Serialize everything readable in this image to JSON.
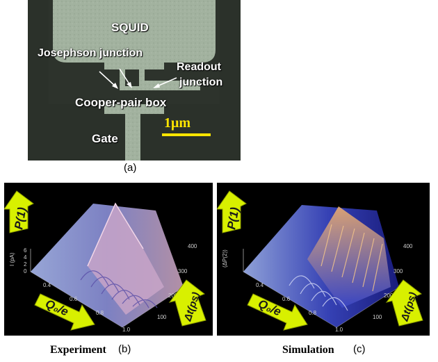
{
  "panel_a": {
    "caption": "(a)",
    "labels": {
      "squid": "SQUID",
      "josephson": "Josephson junction",
      "readout_line1": "Readout",
      "readout_line2": "junction",
      "cooper": "Cooper-pair box",
      "gate": "Gate"
    },
    "scale_bar": "1μm"
  },
  "panel_b": {
    "caption_word": "Experiment",
    "caption_letter": "(b)",
    "z_axis_label": "I (pA)",
    "z_ticks": [
      "6",
      "4",
      "2",
      "0"
    ],
    "x_ticks": [
      "0.4",
      "0.6",
      "0.8",
      "1.0"
    ],
    "y_ticks": [
      "100",
      "200",
      "300",
      "400"
    ],
    "arrow_p": "P(1)",
    "arrow_q": "Q₀/e",
    "arrow_t": "Δt(ps)"
  },
  "panel_c": {
    "caption_word": "Simulation",
    "caption_letter": "(c)",
    "z_axis_label": "(ΔP(2))",
    "x_ticks": [
      "0.4",
      "0.6",
      "0.8",
      "1.0"
    ],
    "y_ticks": [
      "100",
      "200",
      "300",
      "400"
    ],
    "arrow_p": "P(1)",
    "arrow_q": "Q₀/e",
    "arrow_t": "Δt(ps)"
  }
}
